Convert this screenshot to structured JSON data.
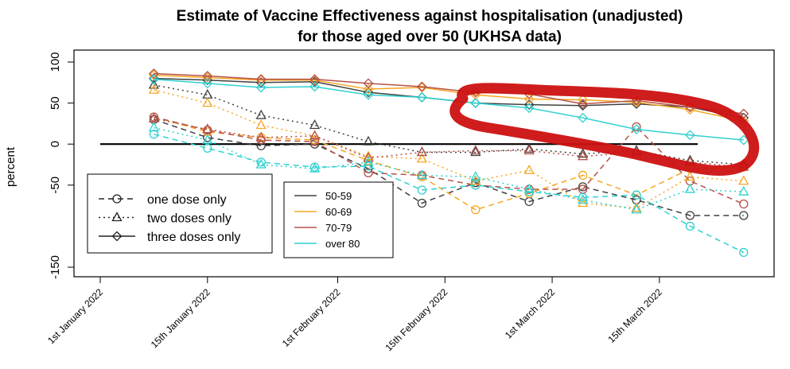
{
  "chart_data": {
    "type": "line",
    "title": "Estimate of Vaccine Effectiveness against hospitalisation (unadjusted)",
    "subtitle": "for those aged over 50 (UKHSA data)",
    "xlabel": "",
    "ylabel": "percent",
    "ylim": [
      -150,
      100
    ],
    "yticks": [
      100,
      50,
      0,
      -50,
      -150
    ],
    "xlim": [
      "2022-01-01",
      "2022-03-28"
    ],
    "x_tick_labels": [
      {
        "date": "2022-01-01",
        "label": "1st January 2022"
      },
      {
        "date": "2022-01-15",
        "label": "15th January 2022"
      },
      {
        "date": "2022-02-01",
        "label": "1st February 2022"
      },
      {
        "date": "2022-02-15",
        "label": "15th February 2022"
      },
      {
        "date": "2022-03-01",
        "label": "1st March 2022"
      },
      {
        "date": "2022-03-15",
        "label": "15th March 2022"
      }
    ],
    "x": [
      "2022-01-08",
      "2022-01-15",
      "2022-01-22",
      "2022-01-29",
      "2022-02-05",
      "2022-02-12",
      "2022-02-19",
      "2022-02-26",
      "2022-03-05",
      "2022-03-12",
      "2022-03-19",
      "2022-03-26"
    ],
    "reference_line": {
      "y": 0,
      "from": "2022-01-01",
      "to": "2022-03-20"
    },
    "age_groups": [
      {
        "name": "50-59",
        "color": "#404040"
      },
      {
        "name": "60-69",
        "color": "#f5a623"
      },
      {
        "name": "70-79",
        "color": "#b5524a"
      },
      {
        "name": "over 80",
        "color": "#2fd1d1"
      }
    ],
    "dose_types": [
      {
        "name": "one dose only",
        "marker": "circle",
        "dash": "dashed"
      },
      {
        "name": "two doses only",
        "marker": "triangle",
        "dash": "dotted"
      },
      {
        "name": "three doses only",
        "marker": "diamond",
        "dash": "solid"
      }
    ],
    "series": [
      {
        "group": "50-59",
        "dose": "three doses only",
        "values": [
          80,
          78,
          75,
          76,
          63,
          57,
          50,
          48,
          47,
          49,
          45,
          32
        ]
      },
      {
        "group": "60-69",
        "dose": "three doses only",
        "values": [
          84,
          81,
          78,
          78,
          67,
          69,
          60,
          55,
          54,
          51,
          42,
          28
        ]
      },
      {
        "group": "70-79",
        "dose": "three doses only",
        "values": [
          86,
          83,
          79,
          79,
          74,
          70,
          63,
          61,
          49,
          53,
          45,
          37
        ]
      },
      {
        "group": "over 80",
        "dose": "three doses only",
        "values": [
          79,
          74,
          69,
          70,
          60,
          57,
          50,
          44,
          32,
          18,
          11,
          5
        ]
      },
      {
        "group": "50-59",
        "dose": "two doses only",
        "values": [
          72,
          60,
          35,
          23,
          3,
          -10,
          -10,
          -6,
          -12,
          -8,
          -20,
          -25
        ]
      },
      {
        "group": "60-69",
        "dose": "two doses only",
        "values": [
          66,
          50,
          23,
          10,
          -15,
          -18,
          -45,
          -32,
          -72,
          -78,
          -40,
          -45
        ]
      },
      {
        "group": "70-79",
        "dose": "two doses only",
        "values": [
          31,
          18,
          8,
          10,
          -17,
          -10,
          -8,
          -8,
          -15,
          -10,
          -22,
          -28
        ]
      },
      {
        "group": "over 80",
        "dose": "two doses only",
        "values": [
          20,
          5,
          -25,
          -30,
          -22,
          -38,
          -40,
          -55,
          -68,
          -80,
          -55,
          -58
        ]
      },
      {
        "group": "50-59",
        "dose": "one dose only",
        "values": [
          30,
          8,
          -2,
          0,
          -30,
          -72,
          -47,
          -70,
          -52,
          -68,
          -87,
          -87
        ]
      },
      {
        "group": "60-69",
        "dose": "one dose only",
        "values": [
          33,
          15,
          8,
          5,
          -20,
          -40,
          -80,
          -60,
          -38,
          -62,
          -30,
          -28
        ]
      },
      {
        "group": "70-79",
        "dose": "one dose only",
        "values": [
          33,
          17,
          5,
          3,
          -35,
          -38,
          -50,
          -55,
          -55,
          21,
          -45,
          -73
        ]
      },
      {
        "group": "over 80",
        "dose": "one dose only",
        "values": [
          12,
          -5,
          -22,
          -28,
          -27,
          -56,
          -50,
          -58,
          -65,
          -62,
          -100,
          -132
        ]
      }
    ],
    "legend_doses": [
      "one dose only",
      "two doses only",
      "three doses only"
    ],
    "legend_groups": [
      "50-59",
      "60-69",
      "70-79",
      "over 80"
    ],
    "annotation": {
      "shape": "hand-drawn loop",
      "color": "#cc1111",
      "encloses": "three-dose lines from mid-February to late March"
    }
  }
}
